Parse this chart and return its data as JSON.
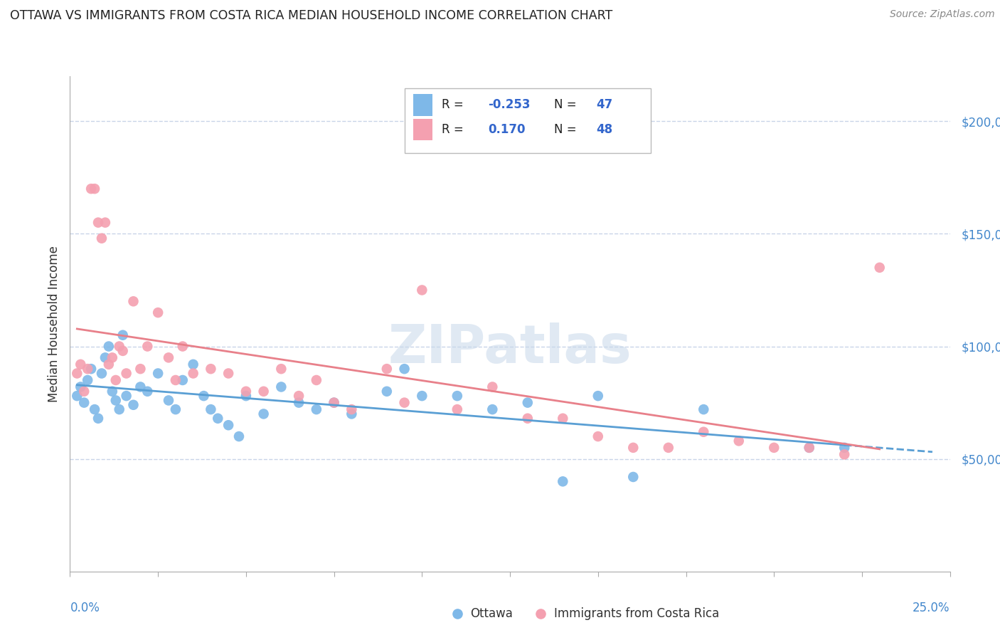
{
  "title": "OTTAWA VS IMMIGRANTS FROM COSTA RICA MEDIAN HOUSEHOLD INCOME CORRELATION CHART",
  "source": "Source: ZipAtlas.com",
  "ylabel": "Median Household Income",
  "xlim": [
    0.0,
    0.25
  ],
  "ylim": [
    0,
    220000
  ],
  "yticks": [
    50000,
    100000,
    150000,
    200000
  ],
  "ytick_labels": [
    "$50,000",
    "$100,000",
    "$150,000",
    "$200,000"
  ],
  "watermark": "ZIPatlas",
  "ottawa_color": "#7eb8e8",
  "cr_color": "#f4a0b0",
  "trend_blue": "#5a9fd4",
  "trend_pink": "#e8808a",
  "background_color": "#ffffff",
  "grid_color": "#c8d4e8",
  "ottawa_scatter_x": [
    0.002,
    0.003,
    0.004,
    0.005,
    0.006,
    0.007,
    0.008,
    0.009,
    0.01,
    0.011,
    0.012,
    0.013,
    0.014,
    0.015,
    0.016,
    0.018,
    0.02,
    0.022,
    0.025,
    0.028,
    0.03,
    0.032,
    0.035,
    0.038,
    0.04,
    0.042,
    0.045,
    0.048,
    0.05,
    0.055,
    0.06,
    0.065,
    0.07,
    0.075,
    0.08,
    0.09,
    0.095,
    0.1,
    0.11,
    0.12,
    0.13,
    0.14,
    0.15,
    0.16,
    0.18,
    0.21,
    0.22
  ],
  "ottawa_scatter_y": [
    78000,
    82000,
    75000,
    85000,
    90000,
    72000,
    68000,
    88000,
    95000,
    100000,
    80000,
    76000,
    72000,
    105000,
    78000,
    74000,
    82000,
    80000,
    88000,
    76000,
    72000,
    85000,
    92000,
    78000,
    72000,
    68000,
    65000,
    60000,
    78000,
    70000,
    82000,
    75000,
    72000,
    75000,
    70000,
    80000,
    90000,
    78000,
    78000,
    72000,
    75000,
    40000,
    78000,
    42000,
    72000,
    55000,
    55000
  ],
  "cr_scatter_x": [
    0.002,
    0.003,
    0.004,
    0.005,
    0.006,
    0.007,
    0.008,
    0.009,
    0.01,
    0.011,
    0.012,
    0.013,
    0.014,
    0.015,
    0.016,
    0.018,
    0.02,
    0.022,
    0.025,
    0.028,
    0.03,
    0.032,
    0.035,
    0.04,
    0.045,
    0.05,
    0.055,
    0.06,
    0.065,
    0.07,
    0.075,
    0.08,
    0.09,
    0.095,
    0.1,
    0.11,
    0.12,
    0.13,
    0.14,
    0.15,
    0.16,
    0.17,
    0.18,
    0.19,
    0.2,
    0.21,
    0.22,
    0.23
  ],
  "cr_scatter_y": [
    88000,
    92000,
    80000,
    90000,
    170000,
    170000,
    155000,
    148000,
    155000,
    92000,
    95000,
    85000,
    100000,
    98000,
    88000,
    120000,
    90000,
    100000,
    115000,
    95000,
    85000,
    100000,
    88000,
    90000,
    88000,
    80000,
    80000,
    90000,
    78000,
    85000,
    75000,
    72000,
    90000,
    75000,
    125000,
    72000,
    82000,
    68000,
    68000,
    60000,
    55000,
    55000,
    62000,
    58000,
    55000,
    55000,
    52000,
    135000
  ]
}
